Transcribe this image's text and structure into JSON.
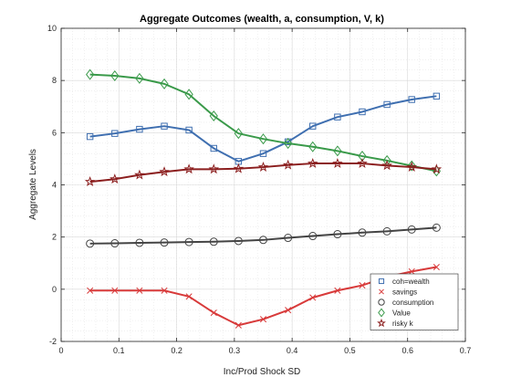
{
  "chart_data": {
    "type": "line",
    "title": "Aggregate Outcomes (wealth, a, consumption, V, k)",
    "xlabel": "Inc/Prod Shock SD",
    "ylabel": "Aggregate Levels",
    "xlim": [
      0,
      0.7
    ],
    "ylim": [
      -2,
      10
    ],
    "xticks": [
      0,
      0.1,
      0.2,
      0.3,
      0.4,
      0.5,
      0.6,
      0.7
    ],
    "xtick_labels": [
      "0",
      "0.1",
      "0.2",
      "0.3",
      "0.4",
      "0.5",
      "0.6",
      "0.7"
    ],
    "yticks": [
      -2,
      0,
      2,
      4,
      6,
      8,
      10
    ],
    "ytick_labels": [
      "-2",
      "0",
      "2",
      "4",
      "6",
      "8",
      "10"
    ],
    "grid": true,
    "legend_position": "bottom-right",
    "x": [
      0.05,
      0.0929,
      0.1357,
      0.1786,
      0.2214,
      0.2643,
      0.3071,
      0.35,
      0.3929,
      0.4357,
      0.4786,
      0.5214,
      0.5643,
      0.6071,
      0.65
    ],
    "series": [
      {
        "name": "coh=wealth",
        "marker": "square",
        "color": "#3f6fb0",
        "values": [
          5.85,
          5.97,
          6.13,
          6.25,
          6.1,
          5.4,
          4.9,
          5.2,
          5.65,
          6.25,
          6.6,
          6.8,
          7.08,
          7.27,
          7.4
        ]
      },
      {
        "name": "savings",
        "marker": "x",
        "color": "#d83a3a",
        "values": [
          -0.05,
          -0.05,
          -0.05,
          -0.05,
          -0.28,
          -0.9,
          -1.38,
          -1.15,
          -0.8,
          -0.32,
          -0.05,
          0.15,
          0.47,
          0.68,
          0.85
        ]
      },
      {
        "name": "consumption",
        "marker": "circle",
        "color": "#444444",
        "values": [
          1.75,
          1.76,
          1.78,
          1.79,
          1.81,
          1.82,
          1.85,
          1.89,
          1.97,
          2.04,
          2.11,
          2.17,
          2.22,
          2.29,
          2.36
        ]
      },
      {
        "name": "Value",
        "marker": "diamond",
        "color": "#3a9a4a",
        "values": [
          8.23,
          8.18,
          8.08,
          7.87,
          7.47,
          6.64,
          5.97,
          5.76,
          5.59,
          5.46,
          5.3,
          5.1,
          4.93,
          4.73,
          4.53
        ]
      },
      {
        "name": "risky k",
        "marker": "star",
        "color": "#8b1e1e",
        "values": [
          4.12,
          4.22,
          4.38,
          4.5,
          4.6,
          4.6,
          4.62,
          4.68,
          4.76,
          4.82,
          4.82,
          4.82,
          4.74,
          4.68,
          4.6
        ]
      }
    ]
  }
}
